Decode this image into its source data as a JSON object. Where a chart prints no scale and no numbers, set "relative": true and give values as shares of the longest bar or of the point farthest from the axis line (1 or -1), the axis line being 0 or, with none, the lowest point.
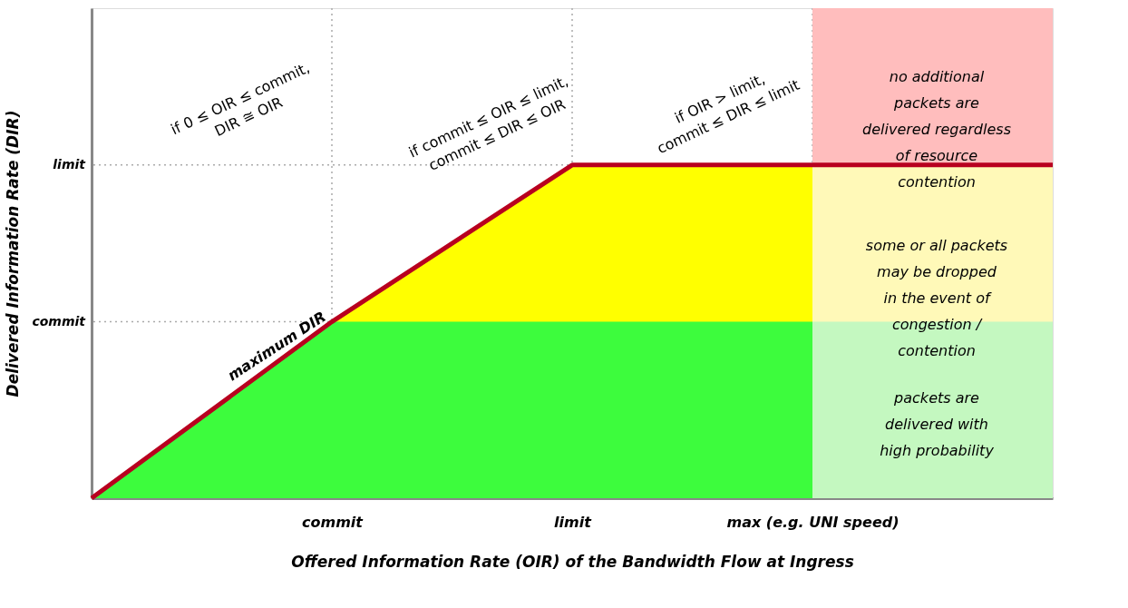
{
  "chart_data": {
    "type": "line",
    "relative": true,
    "xlabel": "Offered Information Rate (OIR) of the Bandwidth Flow at Ingress",
    "ylabel": "Delivered Information Rate (DIR)",
    "categories": [
      null,
      "commit",
      "limit",
      "max (e.g. UNI speed)",
      null
    ],
    "series": [
      {
        "type": "area",
        "color": "#ffbdbd",
        "values": [
          null,
          null,
          null,
          1,
          1
        ]
      },
      {
        "type": "area",
        "color": "#fff9b8",
        "values": [
          null,
          null,
          null,
          0.68,
          0.68
        ]
      },
      {
        "type": "area",
        "color": "#c4f8c0",
        "values": [
          null,
          null,
          null,
          0.36,
          0.36
        ]
      },
      {
        "type": "area",
        "color": "#ffff00",
        "values": [
          null,
          0.36,
          0.68,
          0.68,
          null
        ]
      },
      {
        "type": "area",
        "color": "#3dfc3d",
        "values": [
          0,
          0.36,
          0.36,
          0.36,
          null
        ]
      },
      {
        "name": "maximum DIR",
        "color": "#b8001f",
        "values": [
          0,
          0.36,
          0.68,
          0.68,
          0.68
        ]
      }
    ],
    "ref_lines": [
      {
        "axis": "x",
        "value": "commit",
        "color": "#aaaaaa",
        "line_style": "dotted"
      },
      {
        "axis": "x",
        "value": "limit",
        "color": "#aaaaaa",
        "line_style": "dotted"
      },
      {
        "axis": "x",
        "value": "max (e.g. UNI speed)",
        "color": "#aaaaaa",
        "line_style": "dotted"
      },
      {
        "axis": "y",
        "value": 0.36,
        "label": "commit",
        "color": "#aaaaaa",
        "line_style": "dotted"
      },
      {
        "axis": "y",
        "value": 0.68,
        "label": "limit",
        "color": "#aaaaaa",
        "line_style": "dotted"
      }
    ],
    "annotations": [
      "if 0 ≤ OIR ≤ commit,\nDIR ≅ OIR",
      "if commit ≤ OIR ≤ limit,\ncommit ≤ DIR ≤ OIR",
      "if OIR > limit,\ncommit ≤ DIR ≤ limit",
      "no additional\npackets are\ndelivered regardless\nof resource\ncontention",
      "some or all packets\nmay be dropped\nin the event of\ncongestion /\ncontention",
      "packets are\ndelivered with\nhigh probability"
    ],
    "grid": false
  }
}
